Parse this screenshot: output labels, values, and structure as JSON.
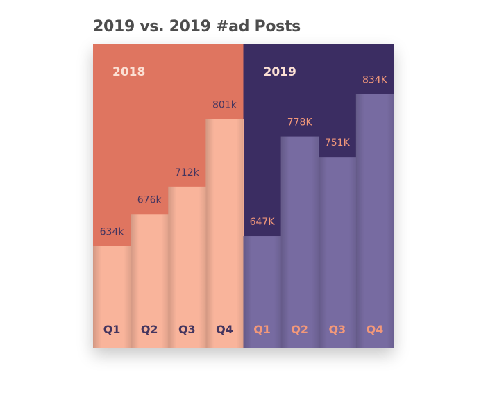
{
  "title": "2019 vs. 2019 #ad Posts",
  "colors": {
    "panel_2018": "#df7560",
    "bar_2018": "#f9b49b",
    "label_2018": "#44355f",
    "panel_2019": "#3b2d62",
    "bar_2019": "#776ba1",
    "label_2019": "#f2987a",
    "year_label": "#fbe0d4"
  },
  "chart_data": {
    "type": "bar",
    "title": "2019 vs. 2019 #ad Posts",
    "categories": [
      "Q1",
      "Q2",
      "Q3",
      "Q4"
    ],
    "ylim": [
      500,
      900
    ],
    "series": [
      {
        "name": "2018",
        "values": [
          634,
          676,
          712,
          801
        ],
        "labels": [
          "634k",
          "676k",
          "712k",
          "801k"
        ]
      },
      {
        "name": "2019",
        "values": [
          647,
          778,
          751,
          834
        ],
        "labels": [
          "647K",
          "778K",
          "751K",
          "834K"
        ]
      }
    ]
  }
}
